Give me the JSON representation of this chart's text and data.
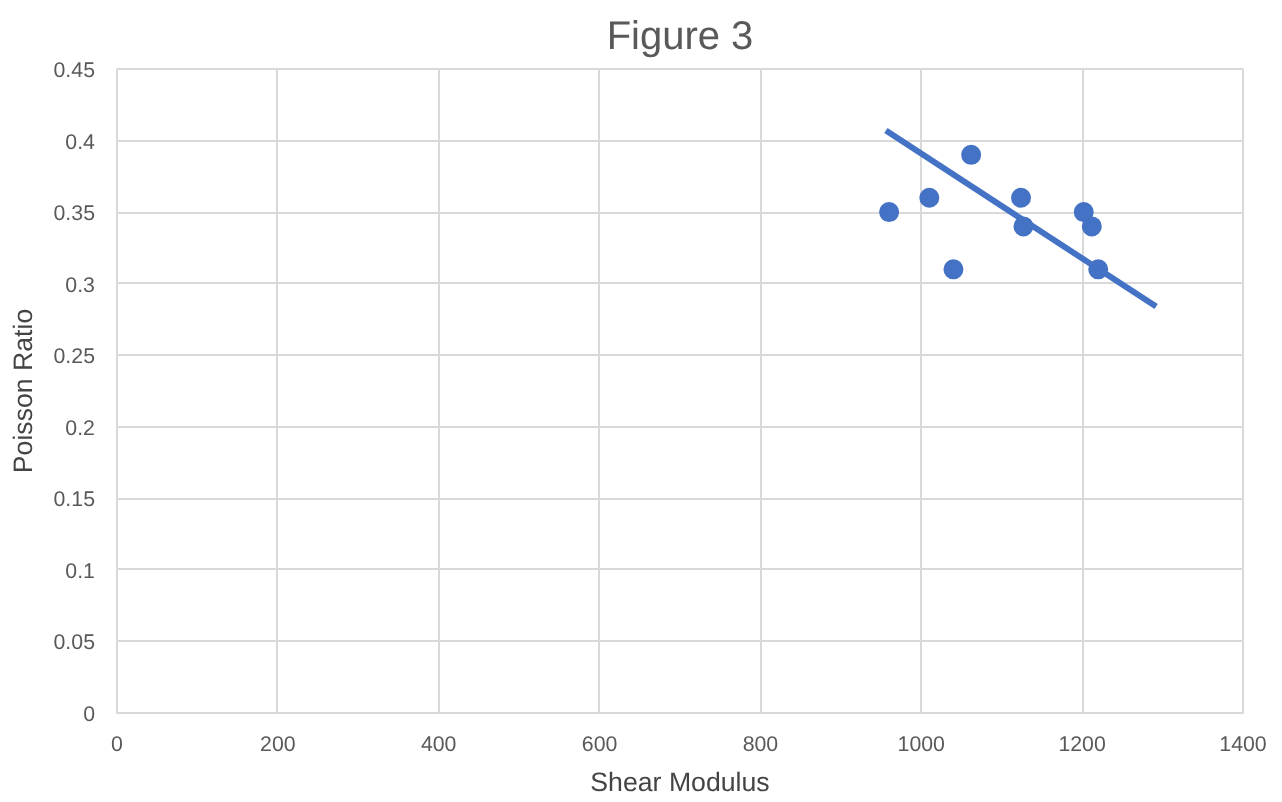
{
  "chart_data": {
    "type": "scatter",
    "title": "Figure 3",
    "xlabel": "Shear Modulus",
    "ylabel": "Poisson Ratio",
    "xlim": [
      0,
      1400
    ],
    "xticks": [
      0,
      200,
      400,
      600,
      800,
      1000,
      1200,
      1400
    ],
    "ylim": [
      0,
      0.45
    ],
    "yticks": [
      0,
      0.05,
      0.1,
      0.15,
      0.2,
      0.25,
      0.3,
      0.35,
      0.4,
      0.45
    ],
    "grid": true,
    "series": [
      {
        "marker": "circle",
        "color": "#4472c4",
        "x": [
          960,
          1010,
          1040,
          1062,
          1124,
          1127,
          1202,
          1212,
          1220
        ],
        "values": [
          0.35,
          0.36,
          0.31,
          0.39,
          0.36,
          0.34,
          0.35,
          0.34,
          0.31
        ]
      },
      {
        "type": "line",
        "color": "#4472c4",
        "x": [
          956,
          1292
        ],
        "values": [
          0.407,
          0.284
        ]
      }
    ]
  }
}
